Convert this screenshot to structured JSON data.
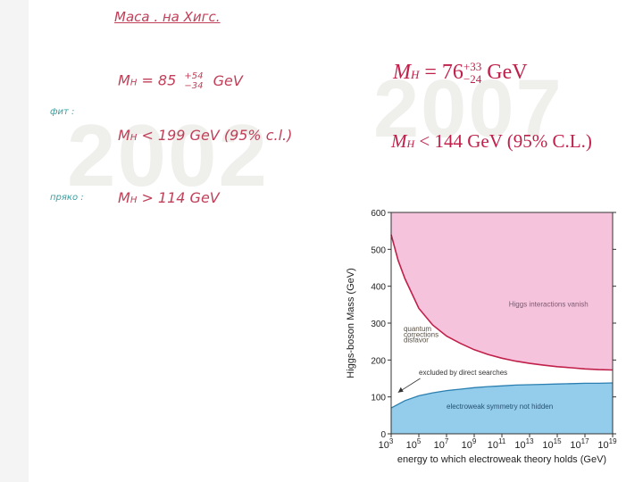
{
  "watermarks": {
    "left": "2002",
    "right": "2007"
  },
  "notes": {
    "title": "Маса . на Хигс.",
    "estimate_lhs": "M",
    "estimate_sub": "H",
    "estimate_eq": "= 85",
    "estimate_up": "+54",
    "estimate_down": "−34",
    "estimate_unit": "GeV",
    "fit_label": "фит :",
    "fit_value": "< 199 GeV (95% c.l.)",
    "direct_label": "пряко :",
    "direct_value": "> 114 GeV"
  },
  "results_2007": {
    "mass_prefix": "M",
    "mass_sub": "H",
    "mass_eq": "= 76",
    "mass_up": "+33",
    "mass_down": "−24",
    "mass_unit": "GeV",
    "limit_prefix": "M",
    "limit_sub": "H",
    "limit_text": "< 144 GeV (95% C.L.)"
  },
  "chart_data": {
    "type": "area",
    "xlabel": "energy to which electroweak theory holds (GeV)",
    "ylabel": "Higgs-boson Mass (GeV)",
    "xscale": "log",
    "xlim": [
      1000,
      1e+19
    ],
    "ylim": [
      0,
      600
    ],
    "x_ticks": [
      {
        "base": "10",
        "exp": "3",
        "value": 3
      },
      {
        "base": "10",
        "exp": "5",
        "value": 5
      },
      {
        "base": "10",
        "exp": "7",
        "value": 7
      },
      {
        "base": "10",
        "exp": "9",
        "value": 9
      },
      {
        "base": "10",
        "exp": "11",
        "value": 11
      },
      {
        "base": "10",
        "exp": "13",
        "value": 13
      },
      {
        "base": "10",
        "exp": "15",
        "value": 15
      },
      {
        "base": "10",
        "exp": "17",
        "value": 17
      },
      {
        "base": "10",
        "exp": "19",
        "value": 19
      }
    ],
    "y_ticks": [
      0,
      100,
      200,
      300,
      400,
      500,
      600
    ],
    "upper_bound": {
      "log10_energy": [
        3,
        3.5,
        4,
        5,
        6,
        7,
        8,
        9,
        10,
        11,
        12,
        13,
        14,
        15,
        16,
        17,
        18,
        19
      ],
      "mass": [
        540,
        470,
        420,
        340,
        295,
        265,
        245,
        228,
        215,
        205,
        197,
        191,
        186,
        182,
        179,
        176,
        174,
        173
      ]
    },
    "lower_bound": {
      "log10_energy": [
        3,
        4,
        5,
        6,
        7,
        8,
        9,
        10,
        11,
        12,
        13,
        14,
        15,
        16,
        17,
        18,
        19
      ],
      "mass": [
        70,
        90,
        103,
        111,
        117,
        121,
        125,
        128,
        130,
        132,
        133,
        134,
        135,
        136,
        137,
        137,
        138
      ]
    },
    "direct_search_limit": 114,
    "regions": [
      {
        "name": "Higgs interactions vanish",
        "color": "#f6c3dd"
      },
      {
        "name": "quantum corrections disfavor",
        "color": "#bdb48f"
      },
      {
        "name": "excluded by direct searches",
        "color": "#f4ef5a"
      },
      {
        "name": "electroweak symmetry not hidden",
        "color": "#93cdeb"
      }
    ],
    "annotations": {
      "vanish": "Higgs interactions vanish",
      "quantum_1": "quantum",
      "quantum_2": "corrections",
      "quantum_3": "disfavor",
      "direct": "excluded by direct searches",
      "electroweak": "electroweak symmetry not hidden"
    },
    "curve_color": "#c0204a",
    "lower_curve_color": "#2a7fb0"
  }
}
